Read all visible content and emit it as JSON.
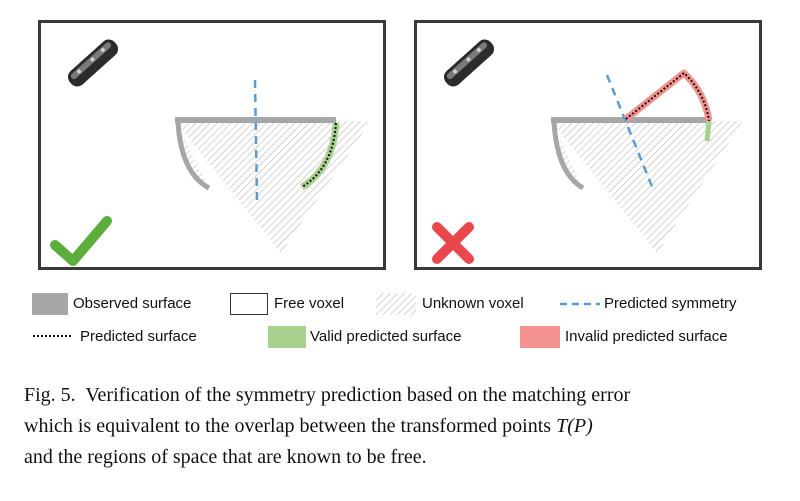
{
  "legend": {
    "observed": "Observed surface",
    "free": "Free voxel",
    "unknown": "Unknown voxel",
    "symmetry": "Predicted symmetry",
    "predicted": "Predicted surface",
    "valid": "Valid predicted surface",
    "invalid": "Invalid predicted surface"
  },
  "colors": {
    "observed": "#a6a6a6",
    "valid": "#a9d18e",
    "invalid": "#f4928f",
    "check": "#5cae3c",
    "cross": "#e8484b",
    "symmetry": "#5b9bd5"
  },
  "caption": {
    "prefix": "Fig. 5.",
    "line1": "Verification of the symmetry prediction based on the matching error",
    "line2": "which is equivalent to the overlap between the transformed points ",
    "math": "T(P)",
    "line3": "and the regions of space that are known to be free."
  }
}
